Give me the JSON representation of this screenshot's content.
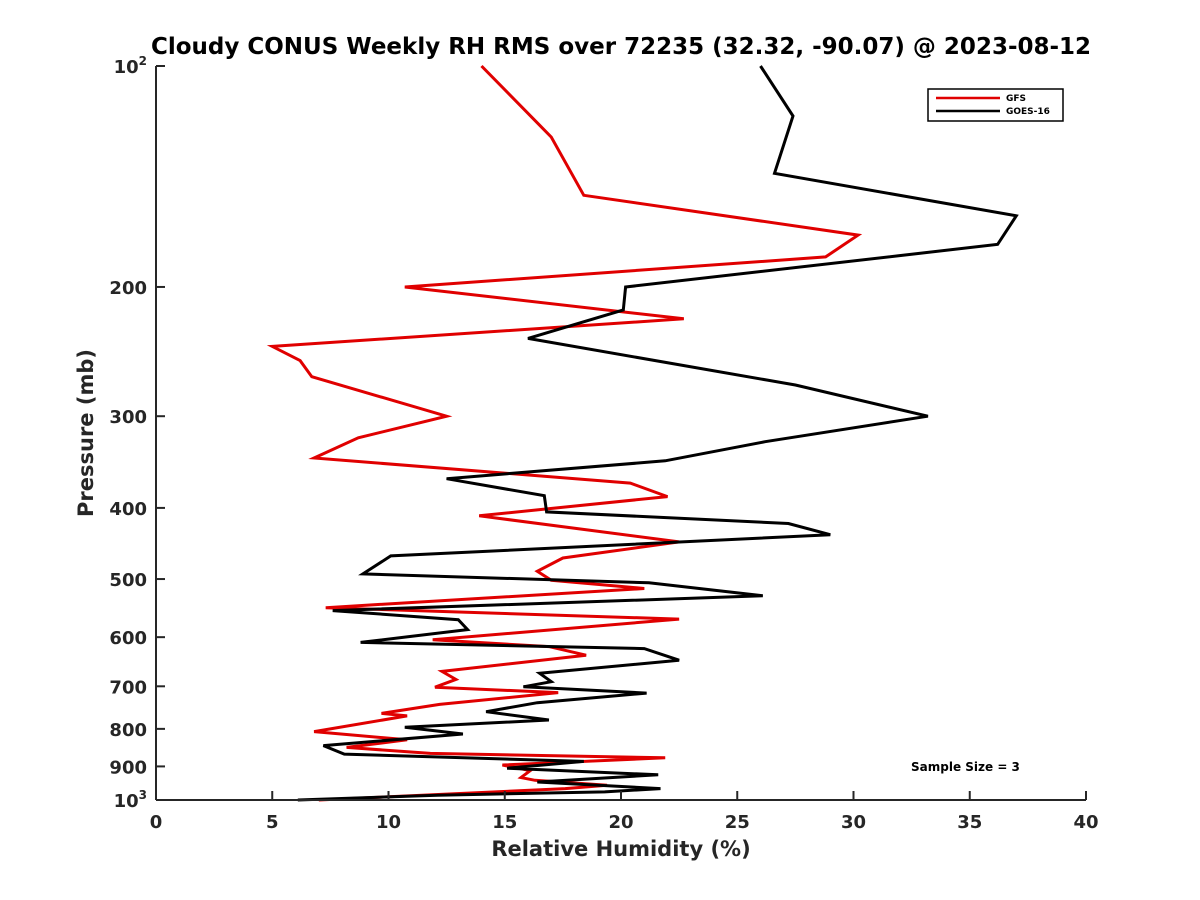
{
  "chart_data": {
    "type": "line",
    "title": "Cloudy CONUS Weekly RH RMS over 72235 (32.32, -90.07) @ 2023-08-12",
    "xlabel": "Relative Humidity (%)",
    "ylabel": "Pressure (mb)",
    "xlim": [
      0,
      40
    ],
    "ylim": [
      100,
      1000
    ],
    "yscale": "log",
    "yreversed": true,
    "x_ticks": [
      "0",
      "5",
      "10",
      "15",
      "20",
      "25",
      "30",
      "35",
      "40"
    ],
    "y_ticks": [
      {
        "value": 100,
        "base": "10",
        "exp": "2"
      },
      {
        "value": 200,
        "label": "200"
      },
      {
        "value": 300,
        "label": "300"
      },
      {
        "value": 400,
        "label": "400"
      },
      {
        "value": 500,
        "label": "500"
      },
      {
        "value": 600,
        "label": "600"
      },
      {
        "value": 700,
        "label": "700"
      },
      {
        "value": 800,
        "label": "800"
      },
      {
        "value": 900,
        "label": "900"
      },
      {
        "value": 1000,
        "base": "10",
        "exp": "3"
      }
    ],
    "legend_position": "top-right",
    "annotation": "Sample Size = 3",
    "series": [
      {
        "name": "GFS",
        "color": "#e00000",
        "points": [
          [
            14,
            100
          ],
          [
            17,
            125
          ],
          [
            18.4,
            150
          ],
          [
            30.2,
            170
          ],
          [
            28.8,
            182
          ],
          [
            10.7,
            200
          ],
          [
            22.7,
            221
          ],
          [
            5,
            241
          ],
          [
            6.2,
            252
          ],
          [
            6.7,
            265
          ],
          [
            12.5,
            300
          ],
          [
            8.7,
            321
          ],
          [
            6.8,
            342
          ],
          [
            20.4,
            370
          ],
          [
            22,
            386
          ],
          [
            13.9,
            410
          ],
          [
            22.5,
            445
          ],
          [
            17.5,
            468
          ],
          [
            16.4,
            488
          ],
          [
            17,
            502
          ],
          [
            21,
            515
          ],
          [
            7.3,
            547
          ],
          [
            22.5,
            567
          ],
          [
            11.9,
            605
          ],
          [
            16.9,
            618
          ],
          [
            18.5,
            635
          ],
          [
            12.3,
            668
          ],
          [
            12.9,
            685
          ],
          [
            12,
            702
          ],
          [
            17.3,
            714
          ],
          [
            12.2,
            741
          ],
          [
            9.7,
            762
          ],
          [
            10.8,
            768
          ],
          [
            6.8,
            807
          ],
          [
            10.8,
            828
          ],
          [
            8.2,
            848
          ],
          [
            11.8,
            864
          ],
          [
            21.9,
            876
          ],
          [
            14.9,
            896
          ],
          [
            16.1,
            912
          ],
          [
            15.7,
            932
          ],
          [
            16.3,
            940
          ],
          [
            19.4,
            955
          ],
          [
            17.6,
            965
          ],
          [
            7,
            1000
          ]
        ]
      },
      {
        "name": "GOES-16",
        "color": "#000000",
        "points": [
          [
            26,
            100
          ],
          [
            27.4,
            117
          ],
          [
            26.6,
            140
          ],
          [
            37,
            160
          ],
          [
            36.2,
            175
          ],
          [
            20.2,
            200
          ],
          [
            20.1,
            215
          ],
          [
            16,
            235
          ],
          [
            27.5,
            272
          ],
          [
            33.2,
            300
          ],
          [
            26.2,
            325
          ],
          [
            21.9,
            345
          ],
          [
            12.5,
            365
          ],
          [
            16.7,
            385
          ],
          [
            16.8,
            405
          ],
          [
            27.2,
            420
          ],
          [
            29,
            435
          ],
          [
            10.1,
            465
          ],
          [
            8.9,
            492
          ],
          [
            21.2,
            506
          ],
          [
            26.1,
            527
          ],
          [
            7.6,
            552
          ],
          [
            13,
            568
          ],
          [
            13.4,
            586
          ],
          [
            8.8,
            610
          ],
          [
            21,
            622
          ],
          [
            22.5,
            645
          ],
          [
            16.5,
            672
          ],
          [
            17,
            690
          ],
          [
            15.8,
            701
          ],
          [
            21.1,
            715
          ],
          [
            16.4,
            737
          ],
          [
            14.2,
            758
          ],
          [
            16.9,
            778
          ],
          [
            10.7,
            796
          ],
          [
            13.2,
            813
          ],
          [
            7.2,
            843
          ],
          [
            8.1,
            866
          ],
          [
            18.4,
            886
          ],
          [
            15.1,
            905
          ],
          [
            21.6,
            924
          ],
          [
            16.4,
            945
          ],
          [
            21.7,
            965
          ],
          [
            19.3,
            975
          ],
          [
            12.1,
            985
          ],
          [
            6.1,
            1000
          ]
        ]
      }
    ]
  }
}
